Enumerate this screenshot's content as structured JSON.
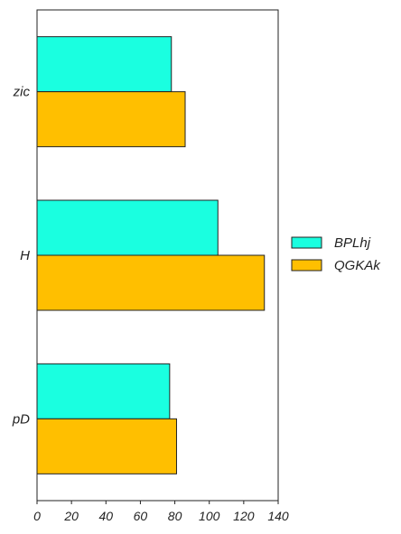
{
  "chart_data": {
    "type": "bar",
    "orientation": "horizontal",
    "categories": [
      "zic",
      "H",
      "pD"
    ],
    "series": [
      {
        "name": "BPLhj",
        "color": "#1affe0",
        "values": [
          78,
          105,
          77
        ]
      },
      {
        "name": "QGKAk",
        "color": "#ffbf00",
        "values": [
          86,
          132,
          81
        ]
      }
    ],
    "xlim": [
      0,
      140
    ],
    "xticks": [
      "0",
      "20",
      "40",
      "60",
      "80",
      "100",
      "120",
      "140"
    ],
    "title": "",
    "xlabel": "",
    "ylabel": "",
    "grid": false,
    "legend_position": "right"
  }
}
